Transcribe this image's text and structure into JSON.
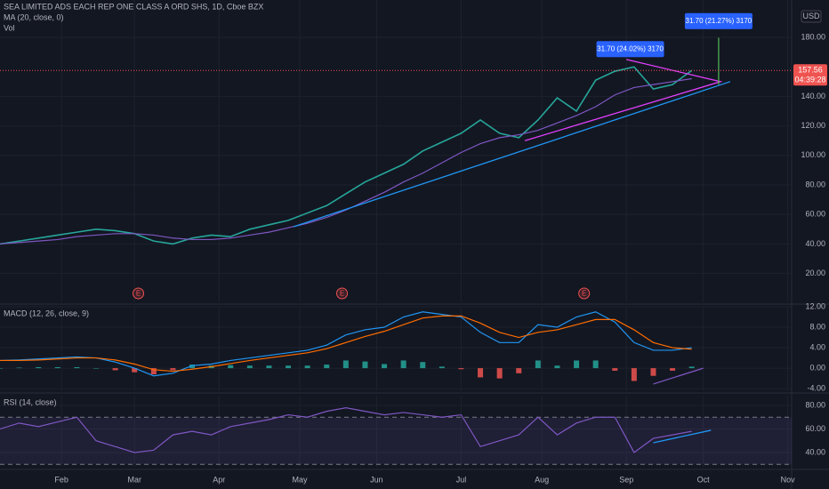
{
  "chart_data": [
    {
      "type": "line",
      "title": "SEA LIMITED ADS EACH REP ONE CLASS A ORD SHS, 1D, Cboe BZX",
      "labels": [
        "MA (20, close, 0)",
        "Vol"
      ],
      "currency": "USD",
      "x": [
        0,
        5,
        10,
        15,
        20,
        25,
        30,
        35,
        40,
        45,
        50,
        55,
        60,
        65,
        70,
        75,
        80,
        85,
        90,
        95,
        100,
        105,
        110,
        115,
        120,
        125,
        130,
        135,
        140,
        145,
        150,
        155,
        160,
        165,
        170,
        175,
        180
      ],
      "xlim": [
        0,
        206
      ],
      "xticks": [
        {
          "value": 16,
          "label": "Feb"
        },
        {
          "value": 35,
          "label": "Mar"
        },
        {
          "value": 57,
          "label": "Apr"
        },
        {
          "value": 78,
          "label": "May"
        },
        {
          "value": 98,
          "label": "Jun"
        },
        {
          "value": 120,
          "label": "Jul"
        },
        {
          "value": 141,
          "label": "Aug"
        },
        {
          "value": 163,
          "label": "Sep"
        },
        {
          "value": 183,
          "label": "Oct"
        },
        {
          "value": 205,
          "label": "Nov"
        }
      ],
      "ylim": [
        0.5,
        205.3
      ],
      "yticks": [
        {
          "value": 20,
          "label": "20.00"
        },
        {
          "value": 40,
          "label": "40.00"
        },
        {
          "value": 60,
          "label": "60.00"
        },
        {
          "value": 80,
          "label": "80.00"
        },
        {
          "value": 100,
          "label": "100.00"
        },
        {
          "value": 120,
          "label": "120.00"
        },
        {
          "value": 140,
          "label": "140.00"
        },
        {
          "value": 180,
          "label": "180.00"
        }
      ],
      "series": [
        {
          "name": "Price",
          "type": "line",
          "color": "#26a69a",
          "values": [
            40,
            42,
            44,
            46,
            48,
            50,
            49,
            47,
            42,
            40,
            44,
            46,
            45,
            50,
            53,
            56,
            61,
            66,
            74,
            82,
            88,
            94,
            103,
            109,
            115,
            124,
            115,
            112,
            124,
            139,
            130,
            151,
            157,
            160,
            145,
            148,
            157.56
          ]
        },
        {
          "name": "MA",
          "type": "line",
          "color": "#7e57c2",
          "values": [
            40,
            41,
            42,
            43,
            45,
            46,
            47,
            47,
            46,
            44,
            43,
            43,
            44,
            46,
            48,
            51,
            54,
            58,
            63,
            69,
            75,
            82,
            88,
            95,
            102,
            108,
            112,
            114,
            117,
            122,
            127,
            133,
            141,
            146,
            148,
            150,
            152
          ]
        }
      ],
      "last_price": 157.56,
      "countdown": "04:39:28",
      "earnings": [
        {
          "x": 36,
          "label": "E"
        },
        {
          "x": 89,
          "label": "E"
        },
        {
          "x": 152,
          "label": "E"
        }
      ],
      "trendlines": [
        {
          "color": "#2196f3",
          "x": [
            76.4,
            190
          ],
          "y": [
            51.7,
            150
          ]
        },
        {
          "color": "#e040fb",
          "x": [
            163,
            187.5,
            136.6
          ],
          "y": [
            165,
            150,
            110
          ]
        },
        {
          "color": "#4caf50",
          "x": [
            187,
            187
          ],
          "y": [
            148,
            179.7
          ]
        }
      ],
      "callouts": [
        {
          "text": "31.70 (24.02%) 3170",
          "x": 164,
          "y": 172
        },
        {
          "text": "31.70 (21.27%) 3170",
          "x": 187,
          "y": 191
        }
      ]
    },
    {
      "type": "line",
      "title": "MACD (12, 26, close, 9)",
      "ylim": [
        -4.5,
        12
      ],
      "yticks": [
        {
          "value": -4,
          "label": "-4.00"
        },
        {
          "value": 0,
          "label": "0.00"
        },
        {
          "value": 4,
          "label": "4.00"
        },
        {
          "value": 8,
          "label": "8.00"
        },
        {
          "value": 12,
          "label": "12.00"
        }
      ],
      "series": [
        {
          "name": "Histogram",
          "type": "bar",
          "colors": [
            "#26a69a",
            "#ef5350"
          ],
          "values": [
            0,
            0.1,
            0.2,
            0.2,
            0.2,
            0,
            -0.4,
            -0.8,
            -1.2,
            -0.4,
            0.7,
            0.5,
            0.6,
            0.5,
            0.5,
            0.5,
            0.5,
            0.7,
            1.5,
            1.3,
            0.8,
            1.5,
            1.2,
            0.3,
            -0.2,
            -1.8,
            -2,
            -1,
            1.5,
            0.5,
            1.5,
            1.5,
            -0.5,
            -2.5,
            -1.5,
            -0.5,
            0.3
          ]
        },
        {
          "name": "MACD",
          "type": "line",
          "color": "#2196f3",
          "values": [
            1.5,
            1.6,
            1.8,
            2.0,
            2.2,
            2.0,
            1.2,
            0,
            -1.5,
            -1.0,
            0.5,
            0.8,
            1.5,
            2.0,
            2.5,
            3.0,
            3.5,
            4.5,
            6.5,
            7.5,
            8,
            10,
            11,
            10.5,
            10,
            7,
            5,
            5,
            8.5,
            8,
            10,
            11,
            9,
            5,
            3.5,
            3.5,
            4
          ]
        },
        {
          "name": "Signal",
          "type": "line",
          "color": "#ff6d00",
          "values": [
            1.5,
            1.5,
            1.6,
            1.8,
            2.0,
            2.0,
            1.6,
            0.8,
            -0.3,
            -0.6,
            -0.2,
            0.3,
            0.9,
            1.5,
            2.0,
            2.5,
            3,
            3.8,
            5,
            6.2,
            7.2,
            8.5,
            9.8,
            10.2,
            10.2,
            8.8,
            7,
            6,
            7,
            7.5,
            8.5,
            9.5,
            9.5,
            7.5,
            5,
            4,
            3.7
          ]
        }
      ],
      "trendlines": [
        {
          "color": "#7e57c2",
          "x": [
            170,
            183
          ],
          "y": [
            -3.1,
            0
          ]
        }
      ]
    },
    {
      "type": "line",
      "title": "RSI (14, close)",
      "ylim": [
        27.9,
        88.3
      ],
      "yticks": [
        {
          "value": 40,
          "label": "40.00"
        },
        {
          "value": 60,
          "label": "60.00"
        },
        {
          "value": 80,
          "label": "80.00"
        }
      ],
      "bands": [
        30,
        70
      ],
      "series": [
        {
          "name": "RSI",
          "type": "line",
          "color": "#7e57c2",
          "values": [
            60,
            65,
            62,
            66,
            70,
            50,
            45,
            40,
            42,
            55,
            58,
            55,
            62,
            65,
            68,
            72,
            70,
            75,
            78,
            75,
            72,
            74,
            72,
            70,
            72,
            45,
            50,
            55,
            70,
            55,
            65,
            70,
            70,
            40,
            52,
            55,
            58
          ]
        }
      ],
      "trendlines": [
        {
          "color": "#2196f3",
          "x": [
            170,
            185
          ],
          "y": [
            48.3,
            58.9
          ]
        }
      ]
    }
  ]
}
